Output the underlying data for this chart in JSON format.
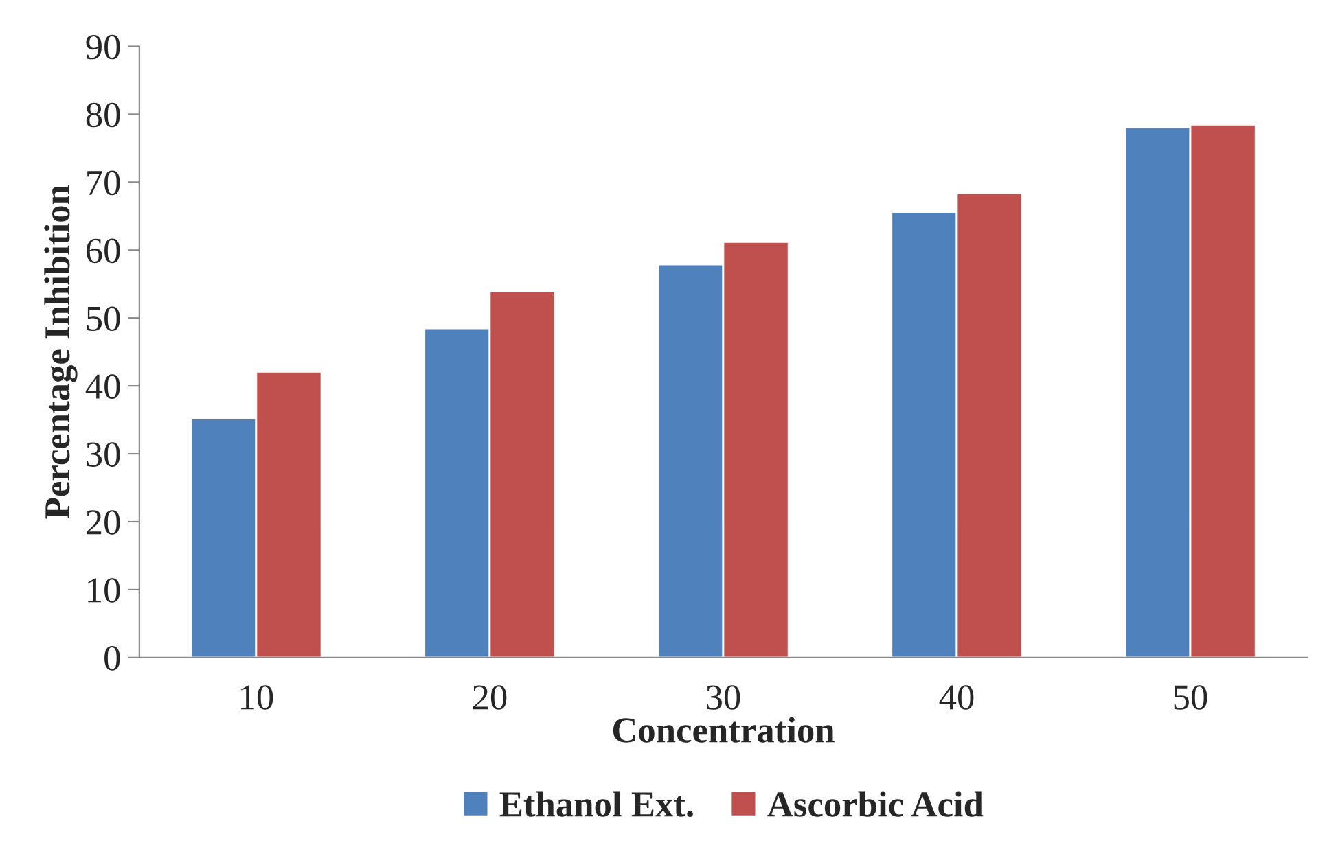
{
  "chart_data": {
    "type": "bar",
    "xlabel": "Concentration",
    "ylabel": "Percentage Inhibition",
    "categories": [
      "10",
      "20",
      "30",
      "40",
      "50"
    ],
    "series": [
      {
        "name": "Ethanol Ext.",
        "color": "#4f81bd",
        "values": [
          35.2,
          48.5,
          57.9,
          65.6,
          78.1
        ]
      },
      {
        "name": "Ascorbic Acid",
        "color": "#c0504d",
        "values": [
          42.1,
          53.9,
          61.2,
          68.4,
          78.5
        ]
      }
    ],
    "ylim": [
      0,
      90
    ],
    "yticks": [
      0,
      10,
      20,
      30,
      40,
      50,
      60,
      70,
      80,
      90
    ],
    "grid": false,
    "legend": "bottom"
  }
}
